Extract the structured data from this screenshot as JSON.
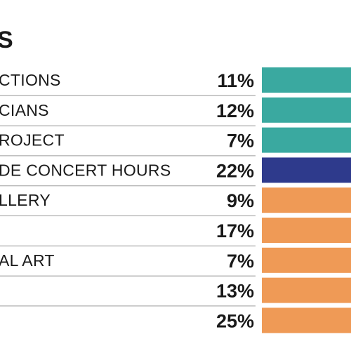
{
  "chart_data": {
    "type": "bar",
    "title": "S",
    "categories": [
      "CTIONS",
      "CIANS",
      "ROJECT",
      "DE CONCERT HOURS",
      "LLERY",
      "",
      "AL ART",
      "",
      ""
    ],
    "values": [
      11,
      12,
      7,
      22,
      9,
      17,
      7,
      13,
      25
    ],
    "value_labels": [
      "11%",
      "12%",
      "7%",
      "22%",
      "9%",
      "17%",
      "7%",
      "13%",
      "25%"
    ],
    "units": "%",
    "bar_colors": [
      "#3aa9a0",
      "#3aa9a0",
      "#3aa9a0",
      "#2e3a8c",
      "#ef9a56",
      "#ef9a56",
      "#ef9a56",
      "#ef9a56",
      "#ef9a56"
    ],
    "grid": false,
    "legend": "none"
  }
}
